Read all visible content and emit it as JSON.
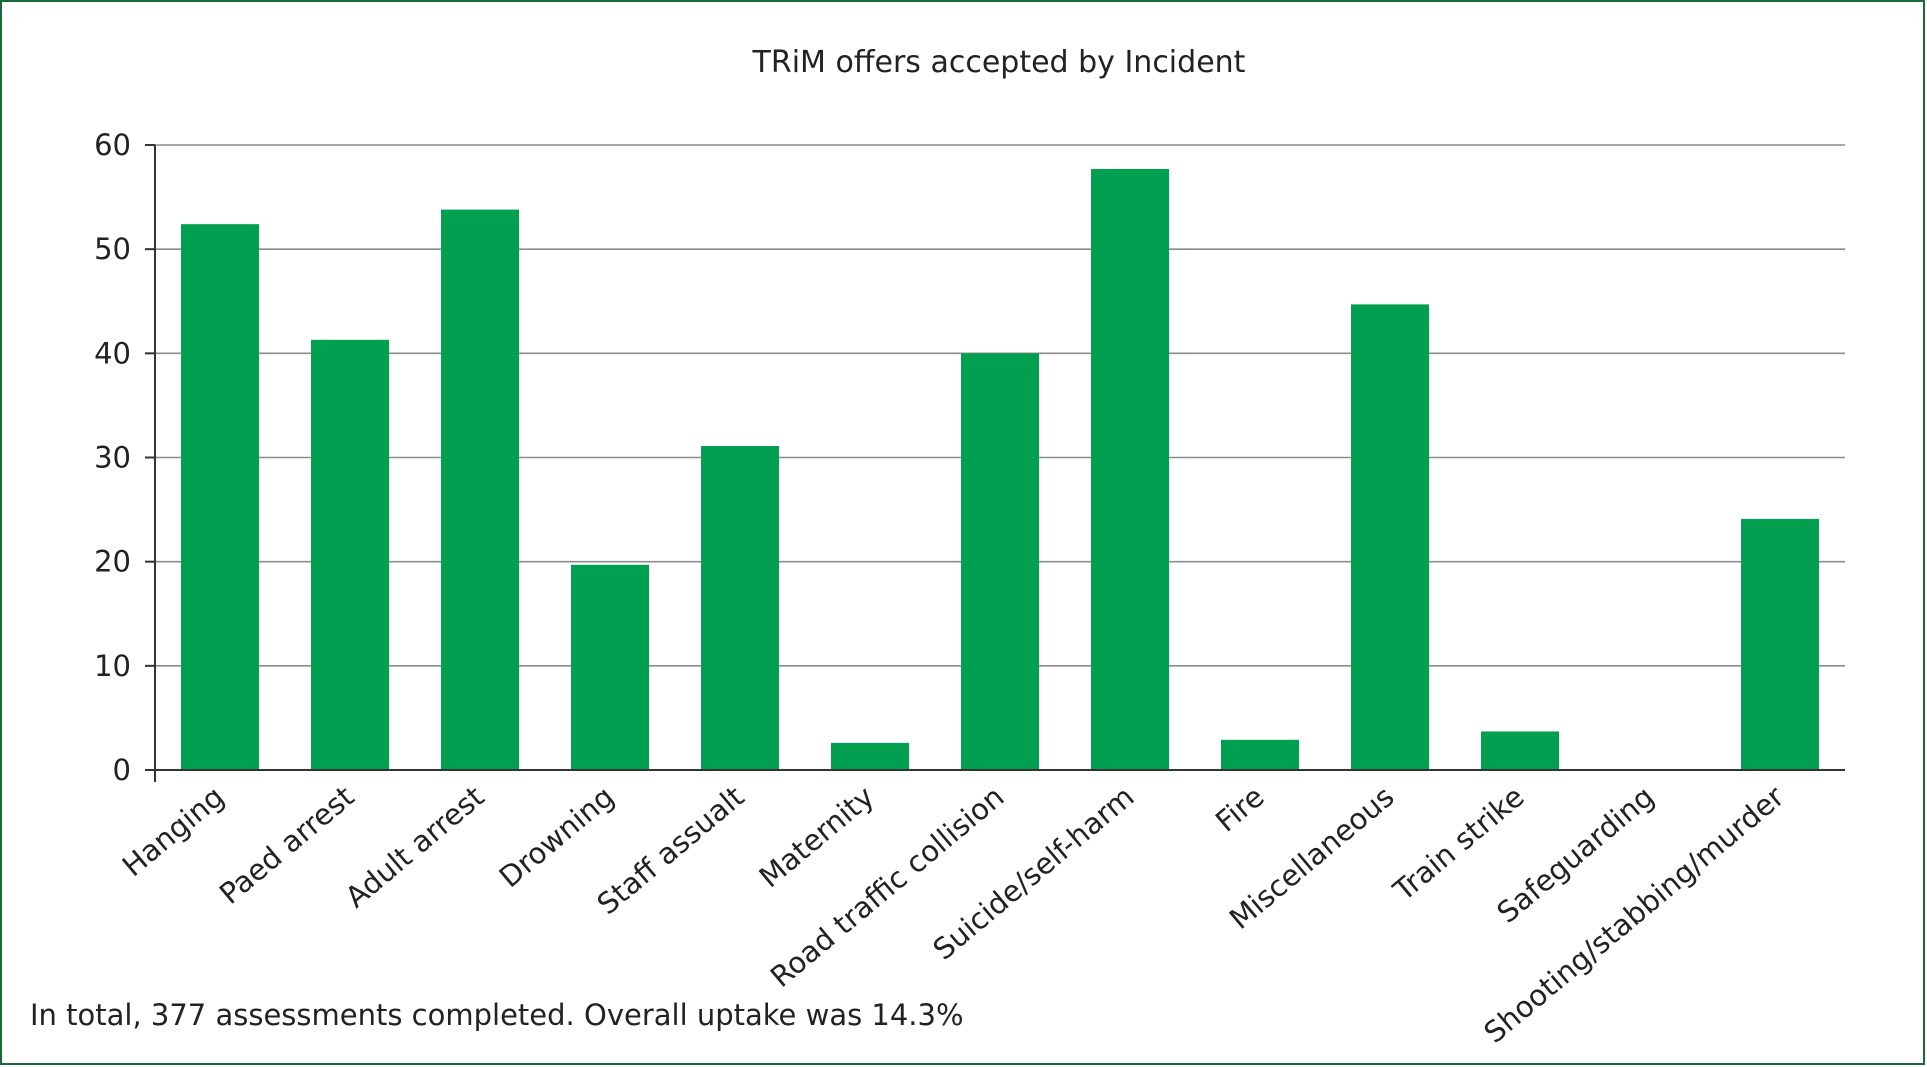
{
  "chart_data": {
    "type": "bar",
    "title": "TRiM offers accepted by Incident",
    "xlabel": "",
    "ylabel": "",
    "ylim": [
      0,
      60
    ],
    "yticks": [
      0,
      10,
      20,
      30,
      40,
      50,
      60
    ],
    "grid": true,
    "categories": [
      "Hanging",
      "Paed arrest",
      "Adult arrest",
      "Drowning",
      "Staff assualt",
      "Maternity",
      "Road traffic collision",
      "Suicide/self-harm",
      "Fire",
      "Miscellaneous",
      "Train strike",
      "Safeguarding",
      "Shooting/stabbing/murder"
    ],
    "values": [
      52.4,
      41.3,
      53.8,
      19.7,
      31.1,
      2.6,
      40.0,
      57.7,
      2.9,
      44.7,
      3.7,
      0,
      24.1
    ],
    "bar_color": "#00a050"
  },
  "footnote": "In total, 377 assessments completed. Overall uptake was 14.3%",
  "colors": {
    "frame": "#1a6b3a",
    "bar": "#00a050",
    "grid": "#8c8c8c",
    "axis": "#333333"
  }
}
